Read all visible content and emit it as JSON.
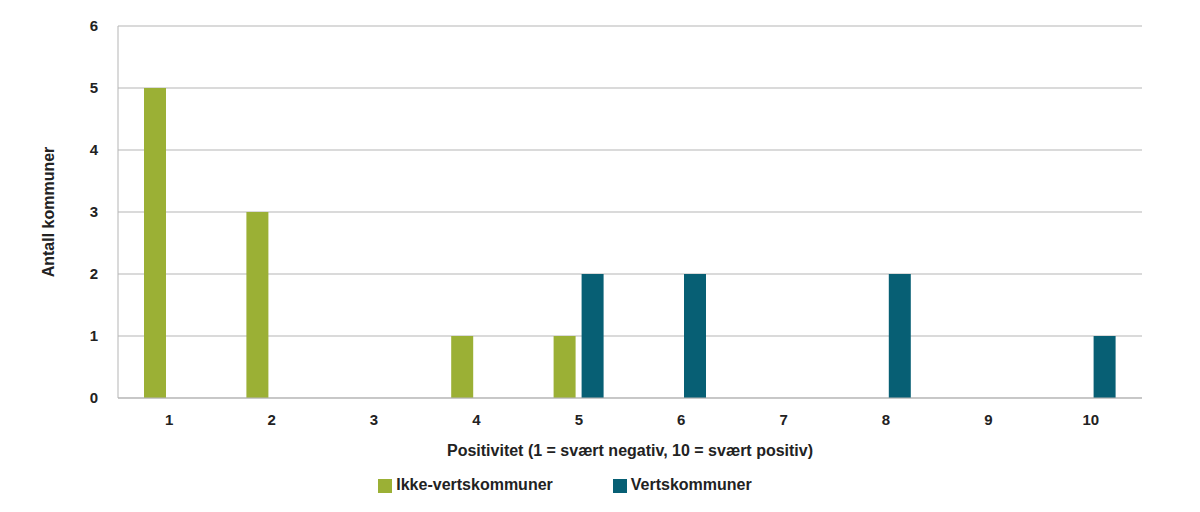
{
  "chart_data": {
    "type": "bar",
    "x_label": "Positivitet (1 = svært negativ, 10 = svært positiv)",
    "y_label": "Antall kommuner",
    "categories": [
      "1",
      "2",
      "3",
      "4",
      "5",
      "6",
      "7",
      "8",
      "9",
      "10"
    ],
    "series": [
      {
        "name": "Ikke-vertskommuner",
        "color": "#9bb035",
        "values": [
          5,
          3,
          0,
          1,
          1,
          0,
          0,
          0,
          0,
          0
        ]
      },
      {
        "name": "Vertskommuner",
        "color": "#075f74",
        "values": [
          0,
          0,
          0,
          0,
          2,
          2,
          0,
          2,
          0,
          1
        ]
      }
    ],
    "ylim": [
      0,
      6
    ],
    "yticks": [
      0,
      1,
      2,
      3,
      4,
      5,
      6
    ],
    "grid": true,
    "legend": "bottom"
  }
}
